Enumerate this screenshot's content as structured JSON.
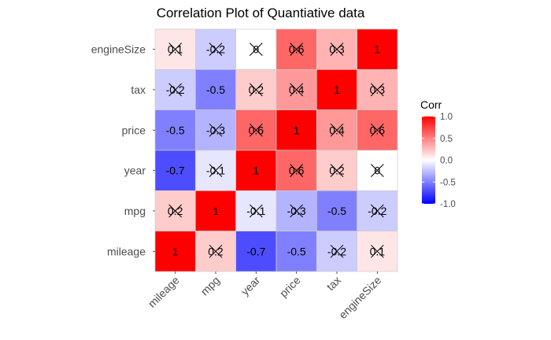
{
  "chart_data": {
    "type": "heatmap",
    "title": "Correlation Plot of Quantiative data",
    "xlabel": "",
    "ylabel": "",
    "x_categories": [
      "mileage",
      "mpg",
      "year",
      "price",
      "tax",
      "engineSize"
    ],
    "y_categories_top_to_bottom": [
      "engineSize",
      "tax",
      "price",
      "year",
      "mpg",
      "mileage"
    ],
    "matrix_rows_top_to_bottom": [
      [
        0.1,
        -0.2,
        0.0,
        0.6,
        0.3,
        1.0
      ],
      [
        -0.2,
        -0.5,
        0.2,
        0.4,
        1.0,
        0.3
      ],
      [
        -0.5,
        -0.3,
        0.6,
        1.0,
        0.4,
        0.6
      ],
      [
        -0.7,
        -0.1,
        1.0,
        0.6,
        0.2,
        0.0
      ],
      [
        0.2,
        1.0,
        -0.1,
        -0.3,
        -0.5,
        -0.2
      ],
      [
        1.0,
        0.2,
        -0.7,
        -0.5,
        -0.2,
        0.1
      ]
    ],
    "labels_rows_top_to_bottom": [
      [
        "0.1",
        "-0.2",
        "0",
        "0.6",
        "0.3",
        "1"
      ],
      [
        "-0.2",
        "-0.5",
        "0.2",
        "0.4",
        "1",
        "0.3"
      ],
      [
        "-0.5",
        "-0.3",
        "0.6",
        "1",
        "0.4",
        "0.6"
      ],
      [
        "-0.7",
        "-0.1",
        "1",
        "0.6",
        "0.2",
        "0"
      ],
      [
        "0.2",
        "1",
        "-0.1",
        "-0.3",
        "-0.5",
        "-0.2"
      ],
      [
        "1",
        "0.2",
        "-0.7",
        "-0.5",
        "-0.2",
        "0.1"
      ]
    ],
    "insignificant_rows_top_to_bottom": [
      [
        true,
        true,
        true,
        true,
        true,
        false
      ],
      [
        true,
        false,
        true,
        true,
        false,
        true
      ],
      [
        false,
        true,
        true,
        false,
        true,
        true
      ],
      [
        false,
        true,
        false,
        true,
        true,
        true
      ],
      [
        true,
        false,
        true,
        true,
        false,
        true
      ],
      [
        false,
        true,
        false,
        false,
        true,
        true
      ]
    ],
    "legend": {
      "title": "Corr",
      "ticks": [
        "1.0",
        "0.5",
        "0.0",
        "-0.5",
        "-1.0"
      ],
      "tick_values": [
        1.0,
        0.5,
        0.0,
        -0.5,
        -1.0
      ],
      "range": [
        -1,
        1
      ],
      "low_color": "#0000FF",
      "mid_color": "#FFFFFF",
      "high_color": "#FF0000"
    },
    "grid": false,
    "legend_placement": "right"
  }
}
